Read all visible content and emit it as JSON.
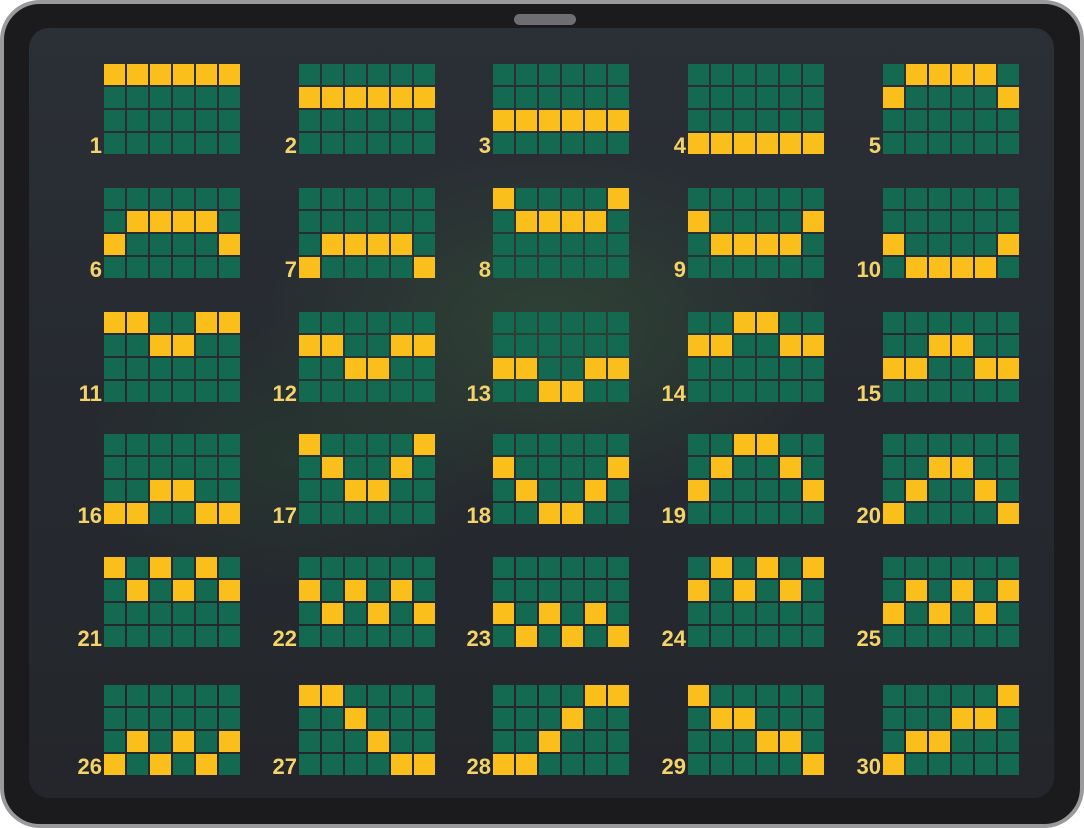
{
  "colors": {
    "cell_off": "#136a51",
    "cell_on": "#fbbf1c",
    "label": "#f3d36a",
    "background": "#262a30",
    "device_frame": "#1b1b1d"
  },
  "paylines": [
    {
      "label": "1",
      "rows": [
        0,
        0,
        0,
        0,
        0,
        0
      ]
    },
    {
      "label": "2",
      "rows": [
        1,
        1,
        1,
        1,
        1,
        1
      ]
    },
    {
      "label": "3",
      "rows": [
        2,
        2,
        2,
        2,
        2,
        2
      ]
    },
    {
      "label": "4",
      "rows": [
        3,
        3,
        3,
        3,
        3,
        3
      ]
    },
    {
      "label": "5",
      "rows": [
        1,
        0,
        0,
        0,
        0,
        1
      ]
    },
    {
      "label": "6",
      "rows": [
        2,
        1,
        1,
        1,
        1,
        2
      ]
    },
    {
      "label": "7",
      "rows": [
        3,
        2,
        2,
        2,
        2,
        3
      ]
    },
    {
      "label": "8",
      "rows": [
        0,
        1,
        1,
        1,
        1,
        0
      ]
    },
    {
      "label": "9",
      "rows": [
        1,
        2,
        2,
        2,
        2,
        1
      ]
    },
    {
      "label": "10",
      "rows": [
        2,
        3,
        3,
        3,
        3,
        2
      ]
    },
    {
      "label": "11",
      "rows": [
        0,
        0,
        1,
        1,
        0,
        0
      ]
    },
    {
      "label": "12",
      "rows": [
        1,
        1,
        2,
        2,
        1,
        1
      ]
    },
    {
      "label": "13",
      "rows": [
        2,
        2,
        3,
        3,
        2,
        2
      ]
    },
    {
      "label": "14",
      "rows": [
        1,
        1,
        0,
        0,
        1,
        1
      ]
    },
    {
      "label": "15",
      "rows": [
        2,
        2,
        1,
        1,
        2,
        2
      ]
    },
    {
      "label": "16",
      "rows": [
        3,
        3,
        2,
        2,
        3,
        3
      ]
    },
    {
      "label": "17",
      "rows": [
        0,
        1,
        2,
        2,
        1,
        0
      ]
    },
    {
      "label": "18",
      "rows": [
        1,
        2,
        3,
        3,
        2,
        1
      ]
    },
    {
      "label": "19",
      "rows": [
        2,
        1,
        0,
        0,
        1,
        2
      ]
    },
    {
      "label": "20",
      "rows": [
        3,
        2,
        1,
        1,
        2,
        3
      ]
    },
    {
      "label": "21",
      "rows": [
        0,
        1,
        0,
        1,
        0,
        1
      ]
    },
    {
      "label": "22",
      "rows": [
        1,
        2,
        1,
        2,
        1,
        2
      ]
    },
    {
      "label": "23",
      "rows": [
        2,
        3,
        2,
        3,
        2,
        3
      ]
    },
    {
      "label": "24",
      "rows": [
        1,
        0,
        1,
        0,
        1,
        0
      ]
    },
    {
      "label": "25",
      "rows": [
        2,
        1,
        2,
        1,
        2,
        1
      ]
    },
    {
      "label": "26",
      "rows": [
        3,
        2,
        3,
        2,
        3,
        2
      ]
    },
    {
      "label": "27",
      "rows": [
        0,
        0,
        1,
        2,
        3,
        3
      ]
    },
    {
      "label": "28",
      "rows": [
        3,
        3,
        2,
        1,
        0,
        0
      ]
    },
    {
      "label": "29",
      "rows": [
        0,
        1,
        1,
        2,
        2,
        3
      ]
    },
    {
      "label": "30",
      "rows": [
        3,
        2,
        2,
        1,
        1,
        0
      ]
    }
  ]
}
